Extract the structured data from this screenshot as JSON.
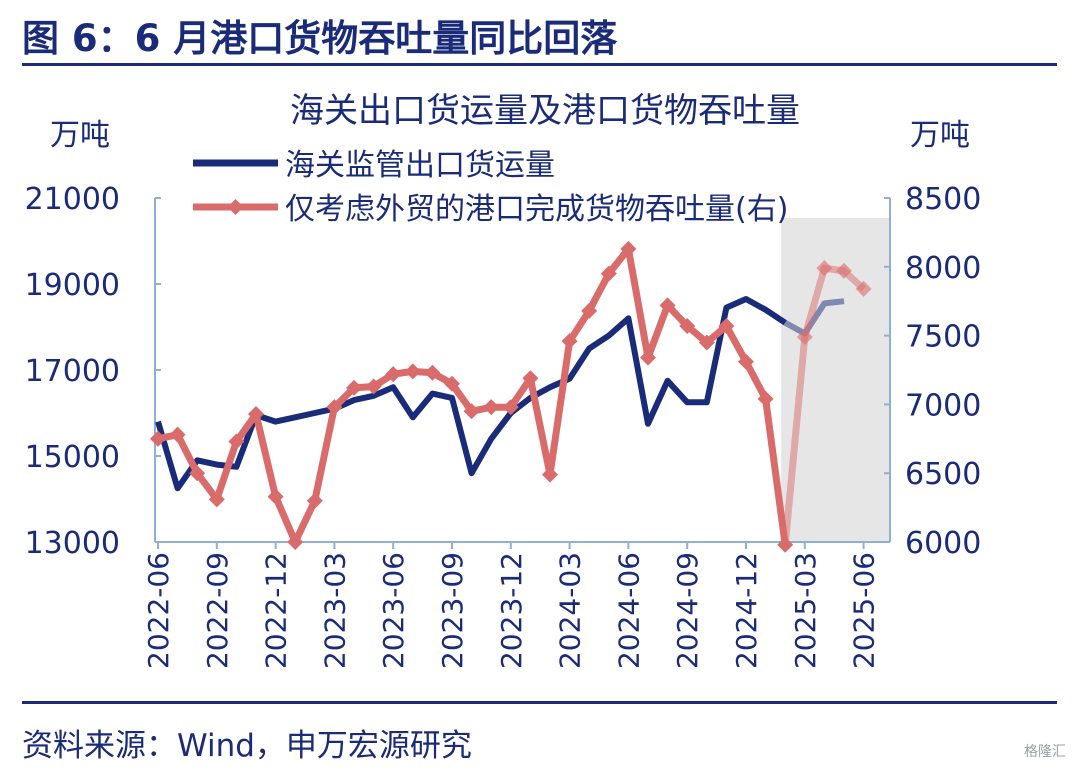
{
  "page": {
    "figure_title": "图 6：6 月港口货物吞吐量同比回落",
    "source": "资料来源：Wind，申万宏源研究",
    "watermark": "格隆汇"
  },
  "colors": {
    "navy": "#1a2b7a",
    "red": "#d96b6b",
    "axis": "#8fb0d6",
    "shade": "#e6e6e6"
  },
  "chart_data": {
    "type": "line",
    "title": "海关出口货运量及港口货物吞吐量",
    "left_unit": "万吨",
    "right_unit": "万吨",
    "ylim_left": [
      13000,
      21000
    ],
    "ylim_right": [
      6000,
      8500
    ],
    "yticks_left": [
      "21000",
      "19000",
      "17000",
      "15000",
      "13000"
    ],
    "yticks_right": [
      "8500",
      "8000",
      "7500",
      "7000",
      "6500",
      "6000"
    ],
    "x_tick_labels": [
      "2022-06",
      "2022-09",
      "2022-12",
      "2023-03",
      "2023-06",
      "2023-09",
      "2023-12",
      "2024-03",
      "2024-06",
      "2024-09",
      "2024-12",
      "2025-03",
      "2025-06"
    ],
    "x": [
      "2022-06",
      "2022-07",
      "2022-08",
      "2022-09",
      "2022-10",
      "2022-11",
      "2022-12",
      "2023-01",
      "2023-02",
      "2023-03",
      "2023-04",
      "2023-05",
      "2023-06",
      "2023-07",
      "2023-08",
      "2023-09",
      "2023-10",
      "2023-11",
      "2023-12",
      "2024-01",
      "2024-02",
      "2024-03",
      "2024-04",
      "2024-05",
      "2024-06",
      "2024-07",
      "2024-08",
      "2024-09",
      "2024-10",
      "2024-11",
      "2024-12",
      "2025-01",
      "2025-02",
      "2025-03",
      "2025-04",
      "2025-05",
      "2025-06"
    ],
    "shaded_from": "2025-02",
    "shaded_to": "2025-06",
    "grid": false,
    "legend_position": "top-left",
    "series": [
      {
        "name": "海关监管出口货运量",
        "axis": "left",
        "color": "#1a2b7a",
        "values": [
          15800,
          14250,
          14900,
          14800,
          14750,
          15950,
          15800,
          15900,
          16000,
          16100,
          16300,
          16400,
          16600,
          15900,
          16450,
          16350,
          14600,
          15400,
          16000,
          16350,
          16600,
          16800,
          17500,
          17800,
          18200,
          15750,
          16750,
          16250,
          16250,
          18450,
          18650,
          18400,
          18100,
          17850,
          18550,
          18600,
          null
        ]
      },
      {
        "name": "仅考虑外贸的港口完成货物吞吐量(右)",
        "axis": "right",
        "color": "#d96b6b",
        "values": [
          6750,
          6780,
          6500,
          6310,
          6730,
          6930,
          6330,
          6000,
          6300,
          6980,
          7120,
          7130,
          7220,
          7240,
          7230,
          7150,
          6950,
          6980,
          6980,
          7190,
          6490,
          7460,
          7680,
          7950,
          8130,
          7340,
          7720,
          7570,
          7450,
          7570,
          7310,
          7040,
          5980,
          7490,
          7990,
          7970,
          7840
        ]
      }
    ]
  }
}
